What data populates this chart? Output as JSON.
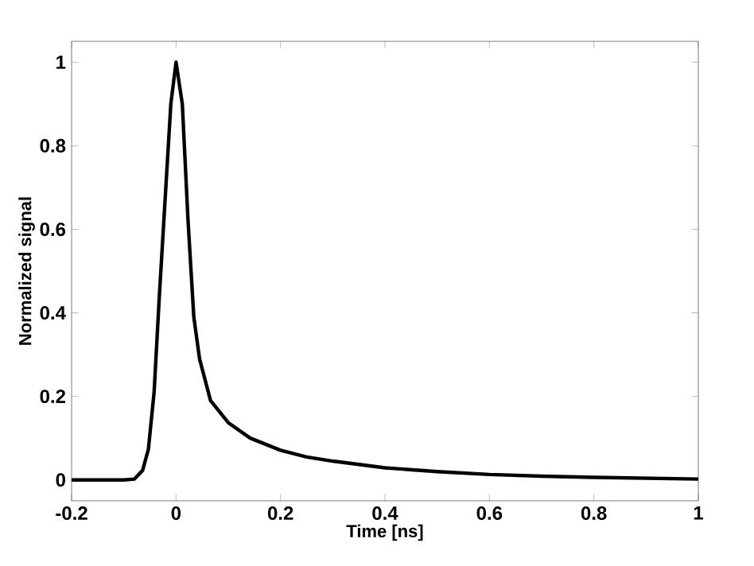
{
  "chart_data": {
    "type": "line",
    "xlabel": "Time [ns]",
    "ylabel": "Normalized signal",
    "x": [
      -0.2,
      -0.1,
      -0.08,
      -0.064,
      -0.053,
      -0.042,
      -0.032,
      -0.021,
      -0.01,
      0,
      0.012,
      0.023,
      0.034,
      0.045,
      0.066,
      0.1,
      0.142,
      0.2,
      0.25,
      0.3,
      0.4,
      0.5,
      0.6,
      0.7,
      0.8,
      0.9,
      1
    ],
    "series": [
      {
        "color": "#000000",
        "values": [
          0,
          0,
          0.002,
          0.023,
          0.073,
          0.21,
          0.44,
          0.67,
          0.9,
          1,
          0.9,
          0.62,
          0.39,
          0.29,
          0.19,
          0.137,
          0.1,
          0.071,
          0.055,
          0.045,
          0.029,
          0.02,
          0.013,
          0.009,
          0.006,
          0.004,
          0.002
        ]
      }
    ],
    "xlim": [
      -0.2,
      1
    ],
    "ylim": [
      -0.05,
      1.05
    ],
    "xticks": [
      -0.2,
      0,
      0.2,
      0.4,
      0.6,
      0.8,
      1
    ],
    "yticks": [
      0,
      0.2,
      0.4,
      0.6,
      0.8,
      1
    ],
    "grid": false,
    "marker": "none",
    "line_style": "solid"
  }
}
